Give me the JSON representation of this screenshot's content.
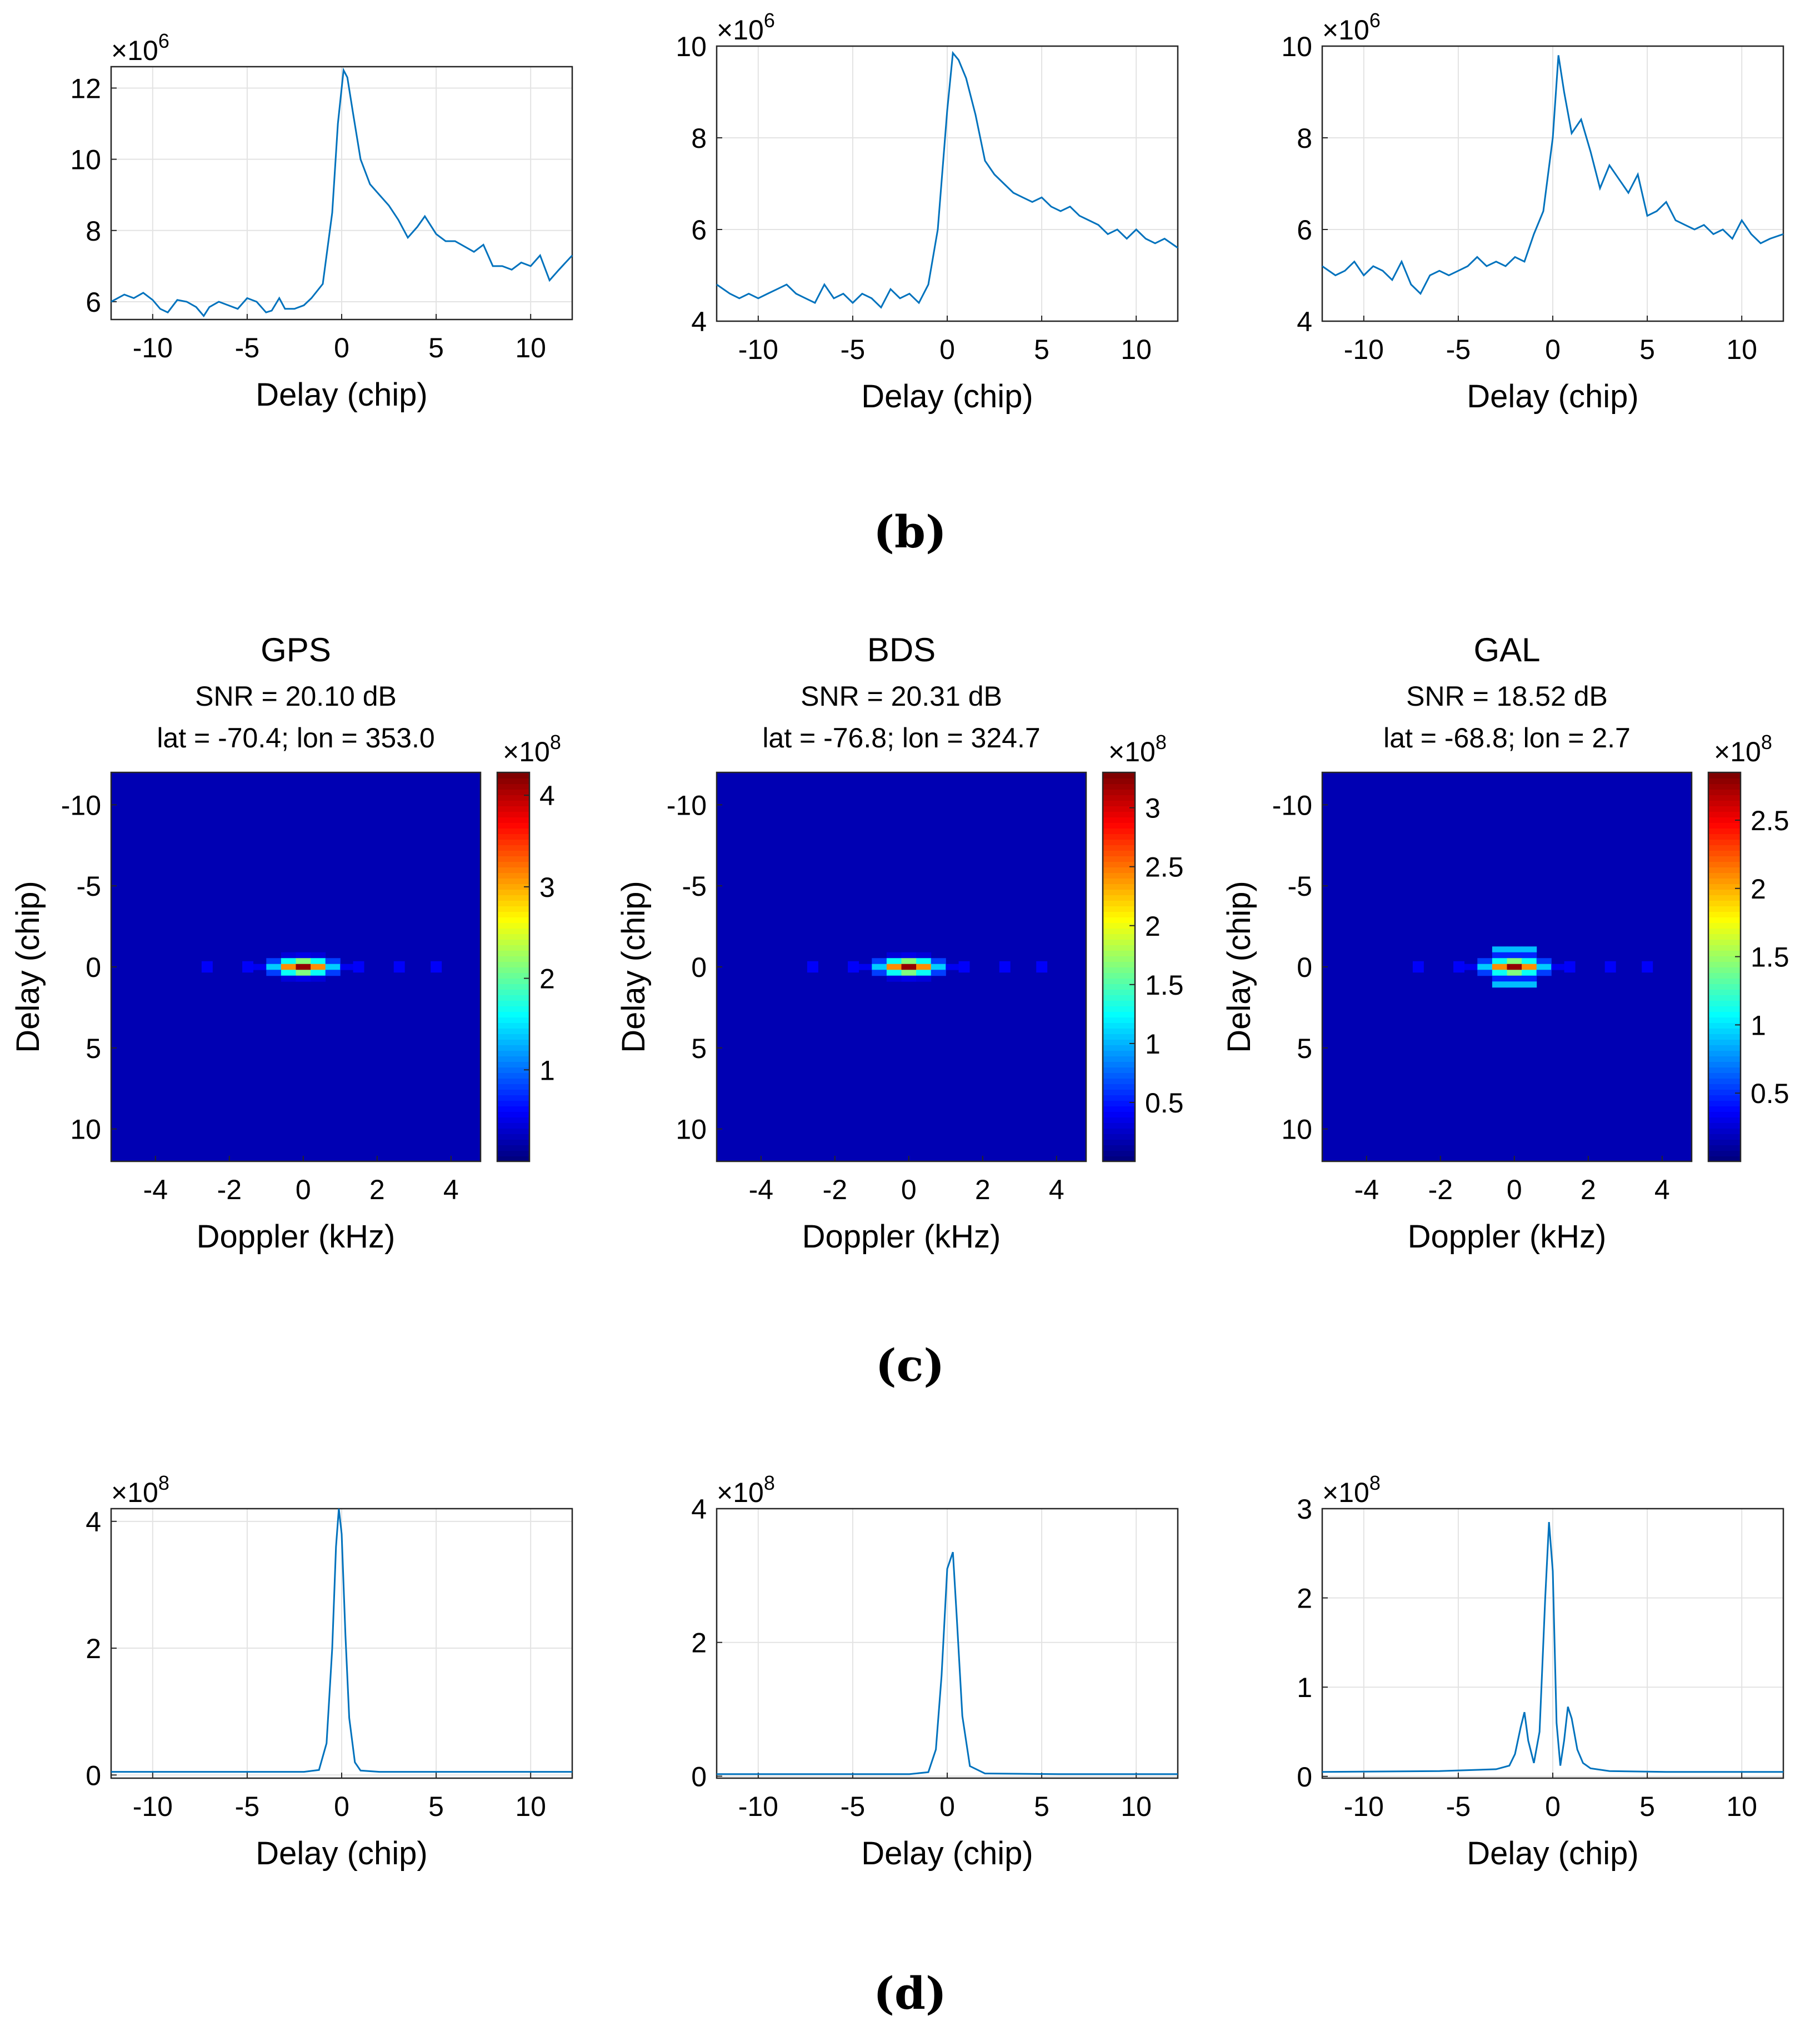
{
  "chart_data": {
    "row_b": {
      "type": "line",
      "xlabel": "Delay (chip)",
      "xlim": [
        -12.2,
        12.2
      ],
      "xticks": [
        -10,
        -5,
        0,
        5,
        10
      ],
      "tick_labels_x": [
        "-10",
        "-5",
        "0",
        "5",
        "10"
      ],
      "charts": [
        {
          "ylim": [
            5.5,
            12.6
          ],
          "yticks": [
            6,
            8,
            10,
            12
          ],
          "tick_labels_y": [
            "6",
            "8",
            "10",
            "12"
          ],
          "exponent_base": "×10",
          "exponent_power": "6",
          "x": [
            -12.2,
            -11.5,
            -11,
            -10.5,
            -10,
            -9.6,
            -9.2,
            -8.7,
            -8.2,
            -7.7,
            -7.3,
            -7,
            -6.5,
            -6,
            -5.5,
            -5,
            -4.5,
            -4,
            -3.7,
            -3.3,
            -3,
            -2.5,
            -2,
            -1.6,
            -1,
            -0.5,
            -0.2,
            0.1,
            0.3,
            0.6,
            1,
            1.5,
            2,
            2.5,
            3,
            3.5,
            4,
            4.4,
            5,
            5.5,
            6,
            7,
            7.5,
            8,
            8.5,
            9,
            9.5,
            10,
            10.5,
            11,
            11.5,
            12.2
          ],
          "values": [
            6.0,
            6.2,
            6.1,
            6.25,
            6.05,
            5.8,
            5.7,
            6.05,
            6.0,
            5.85,
            5.6,
            5.85,
            6.0,
            5.9,
            5.8,
            6.1,
            6.0,
            5.7,
            5.75,
            6.1,
            5.8,
            5.8,
            5.9,
            6.1,
            6.5,
            8.5,
            11.0,
            12.5,
            12.3,
            11.3,
            10.0,
            9.3,
            9.0,
            8.7,
            8.3,
            7.8,
            8.1,
            8.4,
            7.9,
            7.7,
            7.7,
            7.4,
            7.6,
            7.0,
            7.0,
            6.9,
            7.1,
            7.0,
            7.3,
            6.6,
            6.9,
            7.3
          ]
        },
        {
          "ylim": [
            4,
            10
          ],
          "yticks": [
            4,
            6,
            8,
            10
          ],
          "tick_labels_y": [
            "4",
            "6",
            "8",
            "10"
          ],
          "exponent_base": "×10",
          "exponent_power": "6",
          "x": [
            -12.2,
            -11.5,
            -11,
            -10.5,
            -10,
            -9.5,
            -9,
            -8.5,
            -8,
            -7.5,
            -7,
            -6.5,
            -6,
            -5.5,
            -5,
            -4.5,
            -4,
            -3.5,
            -3,
            -2.5,
            -2,
            -1.5,
            -1,
            -0.5,
            0,
            0.3,
            0.6,
            1,
            1.5,
            2,
            2.5,
            3,
            3.5,
            4,
            4.5,
            5,
            5.5,
            6,
            6.5,
            7,
            7.5,
            8,
            8.5,
            9,
            9.5,
            10,
            10.5,
            11,
            11.5,
            12.2
          ],
          "values": [
            4.8,
            4.6,
            4.5,
            4.6,
            4.5,
            4.6,
            4.7,
            4.8,
            4.6,
            4.5,
            4.4,
            4.8,
            4.5,
            4.6,
            4.4,
            4.6,
            4.5,
            4.3,
            4.7,
            4.5,
            4.6,
            4.4,
            4.8,
            6.0,
            8.6,
            9.85,
            9.7,
            9.3,
            8.5,
            7.5,
            7.2,
            7.0,
            6.8,
            6.7,
            6.6,
            6.7,
            6.5,
            6.4,
            6.5,
            6.3,
            6.2,
            6.1,
            5.9,
            6.0,
            5.8,
            6.0,
            5.8,
            5.7,
            5.8,
            5.6
          ]
        },
        {
          "ylim": [
            4,
            10
          ],
          "yticks": [
            4,
            6,
            8,
            10
          ],
          "tick_labels_y": [
            "4",
            "6",
            "8",
            "10"
          ],
          "exponent_base": "×10",
          "exponent_power": "6",
          "x": [
            -12.2,
            -11.5,
            -11,
            -10.5,
            -10,
            -9.5,
            -9,
            -8.5,
            -8,
            -7.5,
            -7,
            -6.5,
            -6,
            -5.5,
            -5,
            -4.5,
            -4,
            -3.5,
            -3,
            -2.5,
            -2,
            -1.5,
            -1,
            -0.5,
            0,
            0.3,
            0.6,
            1,
            1.5,
            2,
            2.5,
            3,
            3.5,
            4,
            4.5,
            5,
            5.5,
            6,
            6.5,
            7,
            7.5,
            8,
            8.5,
            9,
            9.5,
            10,
            10.5,
            11,
            11.5,
            12.2
          ],
          "values": [
            5.2,
            5.0,
            5.1,
            5.3,
            5.0,
            5.2,
            5.1,
            4.9,
            5.3,
            4.8,
            4.6,
            5.0,
            5.1,
            5.0,
            5.1,
            5.2,
            5.4,
            5.2,
            5.3,
            5.2,
            5.4,
            5.3,
            5.9,
            6.4,
            8.0,
            9.8,
            9.0,
            8.1,
            8.4,
            7.7,
            6.9,
            7.4,
            7.1,
            6.8,
            7.2,
            6.3,
            6.4,
            6.6,
            6.2,
            6.1,
            6.0,
            6.1,
            5.9,
            6.0,
            5.8,
            6.2,
            5.9,
            5.7,
            5.8,
            5.9
          ]
        }
      ]
    },
    "row_c": {
      "type": "heatmap",
      "xlabel": "Doppler (kHz)",
      "ylabel": "Delay (chip)",
      "xlim": [
        -5.2,
        4.8
      ],
      "ylim": [
        -12,
        12
      ],
      "xticks": [
        -4,
        -2,
        0,
        2,
        4
      ],
      "tick_labels_x": [
        "-4",
        "-2",
        "0",
        "2",
        "4"
      ],
      "yticks": [
        -10,
        -5,
        0,
        5,
        10
      ],
      "tick_labels_y": [
        "-10",
        "-5",
        "0",
        "5",
        "10"
      ],
      "colormap": "jet",
      "charts": [
        {
          "title": "GPS",
          "snr": "SNR = 20.10 dB",
          "position": "lat = -70.4; lon = 353.0",
          "colorbar_max": 4.25,
          "colorbar_ticks": [
            1,
            2,
            3,
            4
          ],
          "colorbar_tick_labels": [
            "1",
            "2",
            "3",
            "4"
          ],
          "exponent_base": "×10",
          "exponent_power": "8",
          "peak_doppler": 0,
          "peak_delay": 0,
          "side_lobes": false
        },
        {
          "title": "BDS",
          "snr": "SNR = 20.31 dB",
          "position": "lat = -76.8; lon = 324.7",
          "colorbar_max": 3.3,
          "colorbar_ticks": [
            0.5,
            1,
            1.5,
            2,
            2.5,
            3
          ],
          "colorbar_tick_labels": [
            "0.5",
            "1",
            "1.5",
            "2",
            "2.5",
            "3"
          ],
          "exponent_base": "×10",
          "exponent_power": "8",
          "peak_doppler": 0,
          "peak_delay": 0,
          "side_lobes": false
        },
        {
          "title": "GAL",
          "snr": "SNR = 18.52 dB",
          "position": "lat = -68.8; lon = 2.7",
          "colorbar_max": 2.85,
          "colorbar_ticks": [
            0.5,
            1,
            1.5,
            2,
            2.5
          ],
          "colorbar_tick_labels": [
            "0.5",
            "1",
            "1.5",
            "2",
            "2.5"
          ],
          "exponent_base": "×10",
          "exponent_power": "8",
          "peak_doppler": 0,
          "peak_delay": 0,
          "side_lobes": true
        }
      ]
    },
    "row_d": {
      "type": "line",
      "xlabel": "Delay (chip)",
      "xlim": [
        -12.2,
        12.2
      ],
      "xticks": [
        -10,
        -5,
        0,
        5,
        10
      ],
      "tick_labels_x": [
        "-10",
        "-5",
        "0",
        "5",
        "10"
      ],
      "charts": [
        {
          "ylim": [
            -0.05,
            4.2
          ],
          "yticks": [
            0,
            2,
            4
          ],
          "tick_labels_y": [
            "0",
            "2",
            "4"
          ],
          "exponent_base": "×10",
          "exponent_power": "8",
          "x": [
            -12.2,
            -6,
            -2,
            -1.2,
            -0.8,
            -0.5,
            -0.3,
            -0.15,
            0,
            0.2,
            0.4,
            0.7,
            1,
            2,
            6,
            12.2
          ],
          "values": [
            0.05,
            0.05,
            0.05,
            0.08,
            0.5,
            2.0,
            3.6,
            4.2,
            3.8,
            2.2,
            0.9,
            0.2,
            0.07,
            0.05,
            0.05,
            0.05
          ]
        },
        {
          "ylim": [
            -0.03,
            4.0
          ],
          "yticks": [
            0,
            2,
            4
          ],
          "tick_labels_y": [
            "0",
            "2",
            "4"
          ],
          "exponent_base": "×10",
          "exponent_power": "8",
          "x": [
            -12.2,
            -6,
            -2,
            -1,
            -0.6,
            -0.3,
            0,
            0.3,
            0.5,
            0.8,
            1.2,
            2,
            6,
            12.2
          ],
          "values": [
            0.03,
            0.03,
            0.03,
            0.06,
            0.4,
            1.5,
            3.1,
            3.35,
            2.4,
            0.9,
            0.15,
            0.04,
            0.03,
            0.03
          ]
        },
        {
          "ylim": [
            -0.02,
            3.0
          ],
          "yticks": [
            0,
            1,
            2,
            3
          ],
          "tick_labels_y": [
            "0",
            "1",
            "2",
            "3"
          ],
          "exponent_base": "×10",
          "exponent_power": "8",
          "x": [
            -12.2,
            -6,
            -3,
            -2.3,
            -2,
            -1.7,
            -1.5,
            -1.3,
            -1,
            -0.7,
            -0.4,
            -0.2,
            0,
            0.2,
            0.4,
            0.6,
            0.8,
            1,
            1.3,
            1.6,
            2,
            3,
            6,
            12.2
          ],
          "values": [
            0.05,
            0.06,
            0.08,
            0.12,
            0.25,
            0.55,
            0.72,
            0.4,
            0.15,
            0.5,
            2.0,
            2.85,
            2.3,
            0.6,
            0.12,
            0.4,
            0.78,
            0.65,
            0.3,
            0.15,
            0.09,
            0.06,
            0.05,
            0.05
          ]
        }
      ]
    }
  },
  "subfigure_labels": {
    "b": "(b)",
    "c": "(c)",
    "d": "(d)"
  }
}
